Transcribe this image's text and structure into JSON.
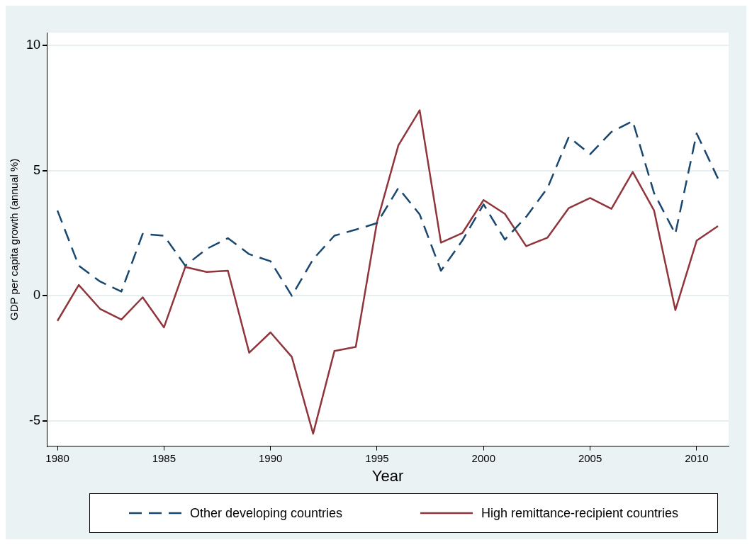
{
  "chart_data": {
    "type": "line",
    "xlabel": "Year",
    "ylabel": "GDP per capita growth (annual %)",
    "x": [
      1980,
      1981,
      1982,
      1983,
      1984,
      1985,
      1986,
      1987,
      1988,
      1989,
      1990,
      1991,
      1992,
      1993,
      1994,
      1995,
      1996,
      1997,
      1998,
      1999,
      2000,
      2001,
      2002,
      2003,
      2004,
      2005,
      2006,
      2007,
      2008,
      2009,
      2010,
      2011
    ],
    "xlim": [
      1979.5,
      2011.5
    ],
    "xticks": [
      1980,
      1985,
      1990,
      1995,
      2000,
      2005,
      2010
    ],
    "ylim": [
      -6,
      10.5
    ],
    "yticks": [
      -5,
      0,
      5,
      10
    ],
    "grid": "y",
    "legend": "bottom",
    "marker": "none",
    "series": [
      {
        "name": "Other developing countries",
        "color": "#1a476f",
        "line_style": "dashed",
        "values": [
          3.4,
          1.2,
          0.57,
          0.17,
          2.47,
          2.4,
          1.2,
          1.87,
          2.3,
          1.66,
          1.38,
          0,
          1.46,
          2.4,
          2.64,
          2.9,
          4.3,
          3.25,
          1.0,
          2.2,
          3.65,
          2.24,
          3.15,
          4.3,
          6.34,
          5.65,
          6.54,
          6.97,
          4.1,
          2.47,
          6.48,
          4.68
        ]
      },
      {
        "name": "High remittance-recipient countries",
        "color": "#90353b",
        "line_style": "solid",
        "values": [
          -1.0,
          0.43,
          -0.52,
          -0.95,
          -0.06,
          -1.26,
          1.15,
          0.95,
          1.0,
          -2.27,
          -1.46,
          -2.44,
          -5.5,
          -2.2,
          -2.04,
          2.95,
          6.0,
          7.4,
          2.12,
          2.5,
          3.82,
          3.27,
          1.98,
          2.32,
          3.5,
          3.9,
          3.47,
          4.94,
          3.41,
          -0.57,
          2.2,
          2.78
        ]
      }
    ]
  }
}
